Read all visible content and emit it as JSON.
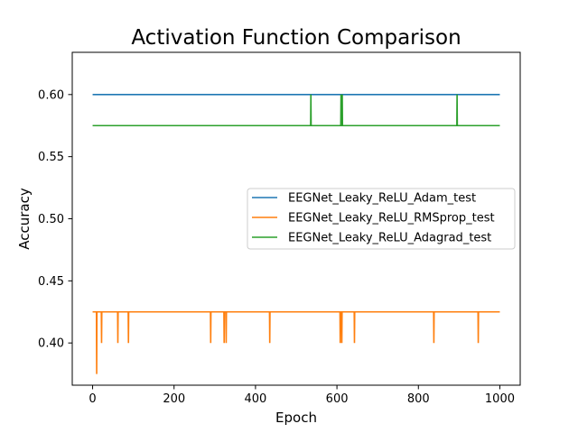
{
  "chart_data": {
    "type": "line",
    "title": "Activation Function Comparison",
    "xlabel": "Epoch",
    "ylabel": "Accuracy",
    "xlim": [
      -50,
      1050
    ],
    "ylim": [
      0.366,
      0.634
    ],
    "xticks": [
      0,
      200,
      400,
      600,
      800,
      1000
    ],
    "xtick_labels": [
      "0",
      "200",
      "400",
      "600",
      "800",
      "1000"
    ],
    "yticks": [
      0.4,
      0.45,
      0.5,
      0.55,
      0.6
    ],
    "ytick_labels": [
      "0.40",
      "0.45",
      "0.50",
      "0.55",
      "0.60"
    ],
    "grid": false,
    "legend_position": "center-right",
    "series": [
      {
        "name": "EEGNet_Leaky_ReLU_Adam_test",
        "color": "#1f77b4",
        "base": 0.6,
        "spikes": [],
        "x_range": [
          0,
          1000
        ]
      },
      {
        "name": "EEGNet_Leaky_ReLU_RMSprop_test",
        "color": "#ff7f0e",
        "base": 0.425,
        "spikes": [
          {
            "x": 10,
            "y": 0.375
          },
          {
            "x": 22,
            "y": 0.4
          },
          {
            "x": 62,
            "y": 0.4
          },
          {
            "x": 88,
            "y": 0.4
          },
          {
            "x": 290,
            "y": 0.4
          },
          {
            "x": 323,
            "y": 0.4
          },
          {
            "x": 328,
            "y": 0.4
          },
          {
            "x": 435,
            "y": 0.4
          },
          {
            "x": 608,
            "y": 0.4
          },
          {
            "x": 612,
            "y": 0.4
          },
          {
            "x": 643,
            "y": 0.4
          },
          {
            "x": 838,
            "y": 0.4
          },
          {
            "x": 947,
            "y": 0.4
          }
        ],
        "x_range": [
          0,
          1000
        ]
      },
      {
        "name": "EEGNet_Leaky_ReLU_Adagrad_test",
        "color": "#2ca02c",
        "base": 0.575,
        "spikes": [
          {
            "x": 536,
            "y": 0.6
          },
          {
            "x": 610,
            "y": 0.6
          },
          {
            "x": 613,
            "y": 0.6
          },
          {
            "x": 895,
            "y": 0.6
          }
        ],
        "x_range": [
          0,
          1000
        ]
      }
    ]
  }
}
